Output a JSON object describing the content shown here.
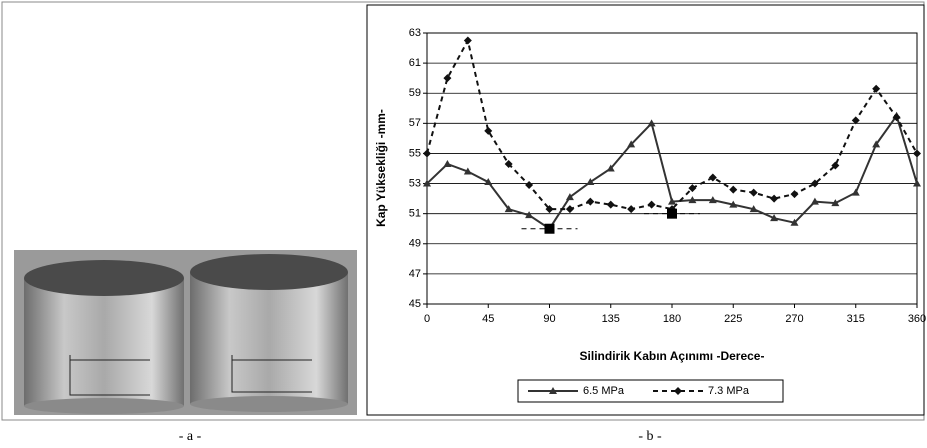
{
  "chart_data": {
    "type": "line",
    "y_label": "Kap Yüksekliği -mm-",
    "x_label": "Silindirik Kabın Açınımı -Derece-",
    "x": [
      0,
      15,
      30,
      45,
      60,
      75,
      90,
      105,
      120,
      135,
      150,
      165,
      180,
      195,
      210,
      225,
      240,
      255,
      270,
      285,
      300,
      315,
      330,
      345,
      360
    ],
    "series": [
      {
        "name": "6.5 MPa",
        "color": "#333333",
        "marker": "triangle",
        "dash": "solid",
        "values": [
          53,
          54.3,
          53.8,
          53.1,
          51.3,
          50.9,
          50.0,
          52.1,
          53.1,
          54.0,
          55.6,
          57.0,
          51.8,
          51.9,
          51.9,
          51.6,
          51.3,
          50.7,
          50.4,
          51.8,
          51.7,
          52.4,
          55.6,
          57.5,
          53
        ]
      },
      {
        "name": "7.3 MPa",
        "color": "#111111",
        "marker": "diamond",
        "dash": "dashed",
        "values": [
          55,
          60,
          62.5,
          56.5,
          54.3,
          52.9,
          51.3,
          51.3,
          51.8,
          51.6,
          51.3,
          51.6,
          51.3,
          52.7,
          53.4,
          52.6,
          52.4,
          52.0,
          52.3,
          53.0,
          54.2,
          57.2,
          59.3,
          57.4,
          55
        ]
      }
    ],
    "highlight_points": {
      "x": [
        90,
        180
      ],
      "values": [
        50,
        51
      ],
      "color": "#000000"
    },
    "xlim": [
      0,
      360
    ],
    "xticks": [
      0,
      45,
      90,
      135,
      180,
      225,
      270,
      315,
      360
    ],
    "ylim": [
      45,
      63
    ],
    "yticks": [
      45,
      47,
      49,
      51,
      53,
      55,
      57,
      59,
      61,
      63
    ],
    "grid": true,
    "legend": "bottom"
  },
  "captions": [
    "- a -",
    "- b -"
  ]
}
